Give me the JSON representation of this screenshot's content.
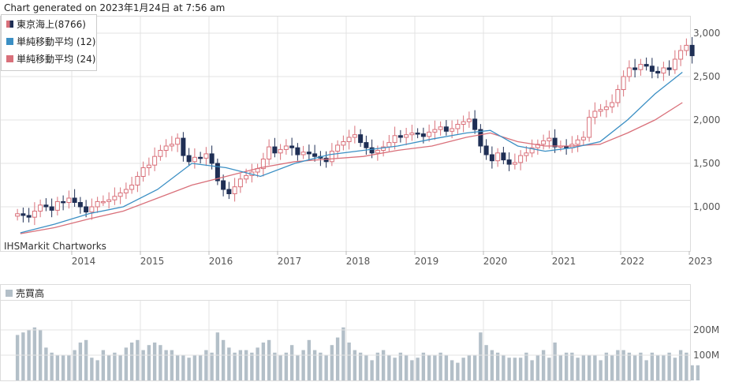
{
  "header": {
    "generated": "Chart generated on 2023年1月24日 at 7:56 am"
  },
  "legend": [
    {
      "label": "東京海上(8766)",
      "color": "#1f2f55",
      "color2": "#d9707a"
    },
    {
      "label": "単純移動平均 (12)",
      "color": "#3b8fc4"
    },
    {
      "label": "単純移動平均 (24)",
      "color": "#d9707a"
    }
  ],
  "watermark": "IHSMarkit Chartworks",
  "volume_panel": {
    "label": "売買高",
    "color": "#b3bfc8"
  },
  "colors": {
    "up": "#d9707a",
    "down": "#1f2f55",
    "ma12": "#3b8fc4",
    "ma24": "#d9707a",
    "grid": "#e3e3e3",
    "volume": "#b3bfc8"
  },
  "chart_data": [
    {
      "type": "candlestick",
      "interval": "monthly",
      "x_range": [
        "2013-03",
        "2023-01"
      ],
      "ylim": [
        600,
        3150
      ],
      "y_ticks": [
        1000,
        1500,
        2000,
        2500,
        3000
      ],
      "y_tick_labels": [
        "1,000",
        "1,500",
        "2,000",
        "2,500",
        "3,000"
      ],
      "x_tick_labels": [
        "2014",
        "2015",
        "2016",
        "2017",
        "2018",
        "2019",
        "2020",
        "2021",
        "2022",
        "2023"
      ],
      "grid": true,
      "legend_position": "top-left",
      "series": [
        {
          "name": "東京海上(8766)",
          "style": "candlestick",
          "approximate_closes": [
            920,
            900,
            880,
            950,
            1020,
            1000,
            960,
            1060,
            1050,
            1100,
            1050,
            1000,
            940,
            1000,
            1060,
            1060,
            1080,
            1120,
            1160,
            1200,
            1250,
            1350,
            1450,
            1480,
            1580,
            1650,
            1700,
            1720,
            1790,
            1590,
            1520,
            1570,
            1560,
            1610,
            1500,
            1300,
            1200,
            1150,
            1230,
            1320,
            1360,
            1400,
            1440,
            1550,
            1690,
            1620,
            1660,
            1700,
            1680,
            1600,
            1630,
            1610,
            1580,
            1560,
            1520,
            1640,
            1710,
            1750,
            1800,
            1830,
            1740,
            1680,
            1620,
            1650,
            1690,
            1740,
            1820,
            1800,
            1830,
            1850,
            1840,
            1810,
            1860,
            1890,
            1920,
            1870,
            1900,
            1950,
            1980,
            2010,
            1890,
            1700,
            1600,
            1530,
            1620,
            1540,
            1490,
            1510,
            1590,
            1620,
            1680,
            1720,
            1760,
            1790,
            1690,
            1700,
            1680,
            1720,
            1770,
            1800,
            2030,
            2100,
            2120,
            2150,
            2200,
            2350,
            2500,
            2600,
            2580,
            2640,
            2620,
            2560,
            2540,
            2600,
            2580,
            2700,
            2800,
            2860,
            2740
          ]
        },
        {
          "name": "単純移動平均 (12)",
          "style": "line",
          "points": [
            [
              2013.25,
              700
            ],
            [
              2013.75,
              800
            ],
            [
              2014.25,
              920
            ],
            [
              2014.75,
              1000
            ],
            [
              2015.25,
              1200
            ],
            [
              2015.75,
              1500
            ],
            [
              2016.25,
              1450
            ],
            [
              2016.75,
              1350
            ],
            [
              2017.25,
              1500
            ],
            [
              2017.75,
              1600
            ],
            [
              2018.25,
              1650
            ],
            [
              2018.75,
              1700
            ],
            [
              2019.25,
              1780
            ],
            [
              2019.75,
              1850
            ],
            [
              2020.1,
              1880
            ],
            [
              2020.5,
              1700
            ],
            [
              2020.9,
              1640
            ],
            [
              2021.3,
              1680
            ],
            [
              2021.7,
              1750
            ],
            [
              2022.1,
              2000
            ],
            [
              2022.5,
              2300
            ],
            [
              2022.9,
              2550
            ]
          ]
        },
        {
          "name": "単純移動平均 (24)",
          "style": "line",
          "points": [
            [
              2013.25,
              690
            ],
            [
              2013.75,
              760
            ],
            [
              2014.25,
              860
            ],
            [
              2014.75,
              950
            ],
            [
              2015.25,
              1100
            ],
            [
              2015.75,
              1250
            ],
            [
              2016.25,
              1350
            ],
            [
              2016.75,
              1450
            ],
            [
              2017.25,
              1520
            ],
            [
              2017.75,
              1550
            ],
            [
              2018.25,
              1580
            ],
            [
              2018.75,
              1650
            ],
            [
              2019.25,
              1700
            ],
            [
              2019.75,
              1800
            ],
            [
              2020.1,
              1850
            ],
            [
              2020.5,
              1750
            ],
            [
              2020.9,
              1700
            ],
            [
              2021.3,
              1700
            ],
            [
              2021.7,
              1720
            ],
            [
              2022.1,
              1850
            ],
            [
              2022.5,
              2000
            ],
            [
              2022.9,
              2200
            ]
          ]
        }
      ]
    },
    {
      "type": "bar",
      "title": "売買高",
      "y_ticks": [
        100,
        200
      ],
      "y_tick_labels": [
        "100M",
        "200M"
      ],
      "ylim": [
        0,
        310
      ],
      "series": [
        {
          "name": "売買高",
          "values": [
            180,
            190,
            200,
            210,
            200,
            130,
            110,
            100,
            100,
            100,
            120,
            150,
            160,
            90,
            80,
            120,
            100,
            110,
            100,
            130,
            150,
            160,
            120,
            140,
            150,
            140,
            120,
            120,
            100,
            100,
            90,
            100,
            100,
            120,
            110,
            190,
            160,
            130,
            110,
            120,
            120,
            110,
            130,
            150,
            160,
            110,
            100,
            110,
            140,
            100,
            120,
            160,
            120,
            110,
            100,
            140,
            170,
            210,
            150,
            120,
            110,
            100,
            80,
            110,
            120,
            100,
            90,
            110,
            100,
            80,
            90,
            110,
            100,
            100,
            110,
            100,
            80,
            70,
            90,
            100,
            100,
            190,
            140,
            120,
            110,
            100,
            90,
            90,
            90,
            110,
            80,
            100,
            120,
            90,
            150,
            100,
            110,
            110,
            90,
            100,
            100,
            100,
            80,
            110,
            100,
            120,
            120,
            110,
            100,
            110,
            80,
            110,
            100,
            100,
            110,
            90,
            120,
            110,
            60,
            60
          ]
        }
      ]
    }
  ]
}
